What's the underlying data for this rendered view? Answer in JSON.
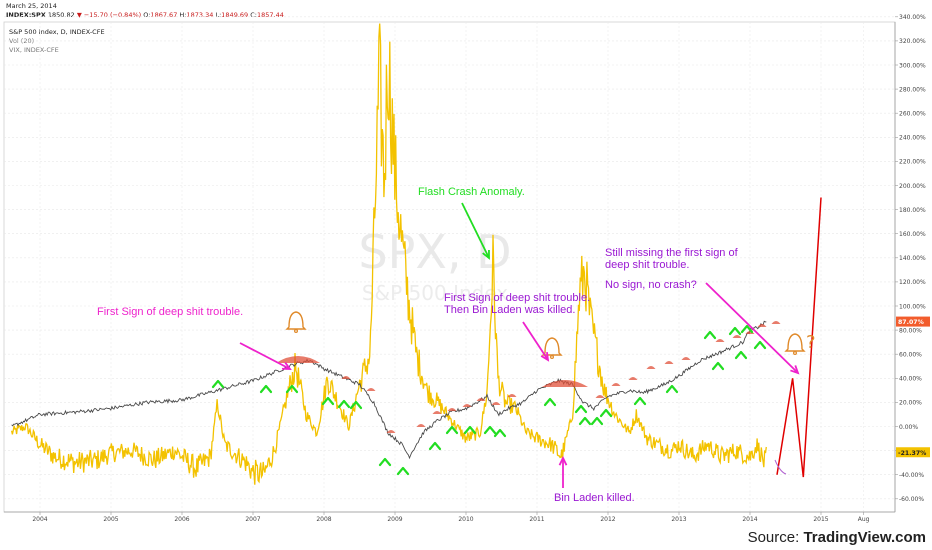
{
  "header": {
    "date": "March 25, 2014",
    "symbol_line": "INDEX:SPX",
    "last": "1850.82",
    "change": "▼ −15.70 (−0.84%)",
    "ohlc_o_label": "O:",
    "ohlc_o": "1867.67",
    "ohlc_h_label": "H:",
    "ohlc_h": "1873.34",
    "ohlc_l_label": "L:",
    "ohlc_l": "1849.69",
    "ohlc_c_label": "C:",
    "ohlc_c": "1857.44",
    "legend_1": "S&P 500 Index, D, INDEX-CFE",
    "legend_2": "Vol (20)",
    "legend_3": "VIX, INDEX-CFE"
  },
  "watermark": {
    "line1": "SPX, D",
    "line2": "S&P 500 Index"
  },
  "source": {
    "prefix": "Source: ",
    "brand": "TradingView.com"
  },
  "colors": {
    "vix": "#f3c200",
    "spx": "#4a4a4a",
    "up_arrow": "#22dd22",
    "dome": "#e0503a",
    "bell": "#e08a2a",
    "projection": "#e00000",
    "magenta": "#ee22cc",
    "purple_text": "#9a18d2",
    "green_text": "#22dd22",
    "badge_red": "#f25c2c",
    "badge_yellow": "#f3c200"
  },
  "annotations": {
    "first_sign": "First Sign of deep shit trouble.",
    "flash_crash": "Flash Crash Anomaly.",
    "first_sign_2a": "First Sign of deep shit trouble.",
    "first_sign_2b": "Then Bin Laden was killed.",
    "still_missing_a": "Still missing the first sign of",
    "still_missing_b": "deep shit trouble.",
    "no_sign": "No sign, no crash?",
    "bin_laden": "Bin Laden killed.",
    "question": "?"
  },
  "chart_data": {
    "type": "line",
    "x_ticks": [
      "2004",
      "2005",
      "2006",
      "2007",
      "2008",
      "2009",
      "2010",
      "2011",
      "2012",
      "2013",
      "2014",
      "2015",
      "Aug"
    ],
    "y_ticks": [
      "340.00%",
      "320.00%",
      "300.00%",
      "280.00%",
      "260.00%",
      "240.00%",
      "220.00%",
      "200.00%",
      "180.00%",
      "160.00%",
      "140.00%",
      "120.00%",
      "100.00%",
      "80.00%",
      "60.00%",
      "40.00%",
      "20.00%",
      "0.00%",
      "-20.00%",
      "-40.00%",
      "-60.00%"
    ],
    "ylim": [
      -60,
      340
    ],
    "y_unit": "%",
    "series": [
      {
        "name": "VIX, INDEX-CFE",
        "x": [
          2003.6,
          2003.8,
          2004.0,
          2004.2,
          2004.5,
          2004.8,
          2005.0,
          2005.3,
          2005.6,
          2005.9,
          2006.2,
          2006.4,
          2006.5,
          2006.6,
          2006.9,
          2007.0,
          2007.15,
          2007.3,
          2007.5,
          2007.6,
          2007.75,
          2007.9,
          2008.05,
          2008.2,
          2008.35,
          2008.5,
          2008.65,
          2008.78,
          2008.85,
          2008.9,
          2009.0,
          2009.1,
          2009.2,
          2009.3,
          2009.45,
          2009.6,
          2009.8,
          2010.0,
          2010.2,
          2010.3,
          2010.38,
          2010.45,
          2010.55,
          2010.7,
          2010.85,
          2011.0,
          2011.2,
          2011.35,
          2011.5,
          2011.6,
          2011.67,
          2011.75,
          2011.85,
          2011.95,
          2012.1,
          2012.3,
          2012.4,
          2012.55,
          2012.7,
          2012.9,
          2013.0,
          2013.2,
          2013.4,
          2013.6,
          2013.8,
          2014.0,
          2014.1,
          2014.2,
          2014.23
        ],
        "y": [
          -5,
          0,
          -15,
          -25,
          -30,
          -28,
          -22,
          -20,
          -28,
          -20,
          -35,
          -25,
          20,
          -15,
          -30,
          -38,
          -40,
          -20,
          30,
          50,
          10,
          -5,
          40,
          20,
          0,
          35,
          60,
          290,
          200,
          310,
          210,
          150,
          100,
          60,
          30,
          20,
          5,
          -10,
          -5,
          30,
          135,
          40,
          20,
          15,
          -5,
          -10,
          -15,
          -25,
          10,
          110,
          130,
          90,
          60,
          30,
          10,
          -5,
          10,
          -10,
          -15,
          -20,
          -15,
          -25,
          -15,
          -25,
          -20,
          -25,
          -15,
          -30,
          -25
        ]
      },
      {
        "name": "S&P 500 Index",
        "x": [
          2003.6,
          2004.0,
          2004.5,
          2005.0,
          2005.5,
          2006.0,
          2006.5,
          2007.0,
          2007.3,
          2007.6,
          2007.8,
          2008.0,
          2008.3,
          2008.5,
          2008.7,
          2008.9,
          2009.1,
          2009.2,
          2009.4,
          2009.6,
          2009.8,
          2010.0,
          2010.3,
          2010.45,
          2010.6,
          2010.8,
          2011.0,
          2011.3,
          2011.5,
          2011.65,
          2011.8,
          2012.0,
          2012.3,
          2012.5,
          2012.8,
          2013.0,
          2013.3,
          2013.6,
          2013.9,
          2014.0,
          2014.1,
          2014.23
        ],
        "y": [
          0,
          10,
          12,
          15,
          20,
          22,
          30,
          38,
          45,
          52,
          55,
          48,
          40,
          35,
          20,
          -5,
          -15,
          -25,
          -5,
          5,
          12,
          15,
          25,
          10,
          15,
          20,
          30,
          38,
          35,
          20,
          15,
          25,
          30,
          28,
          35,
          42,
          55,
          62,
          70,
          80,
          82,
          87
        ]
      },
      {
        "name": "Projection",
        "x": [
          2014.38,
          2014.6,
          2014.75,
          2015.0
        ],
        "y": [
          -40,
          40,
          -42,
          190
        ]
      }
    ],
    "badges": [
      {
        "value": "87.07%",
        "y": 87.07
      },
      {
        "value": "-21.37%",
        "y": -21.37
      }
    ],
    "xlim": [
      2003.6,
      2015.6
    ]
  }
}
